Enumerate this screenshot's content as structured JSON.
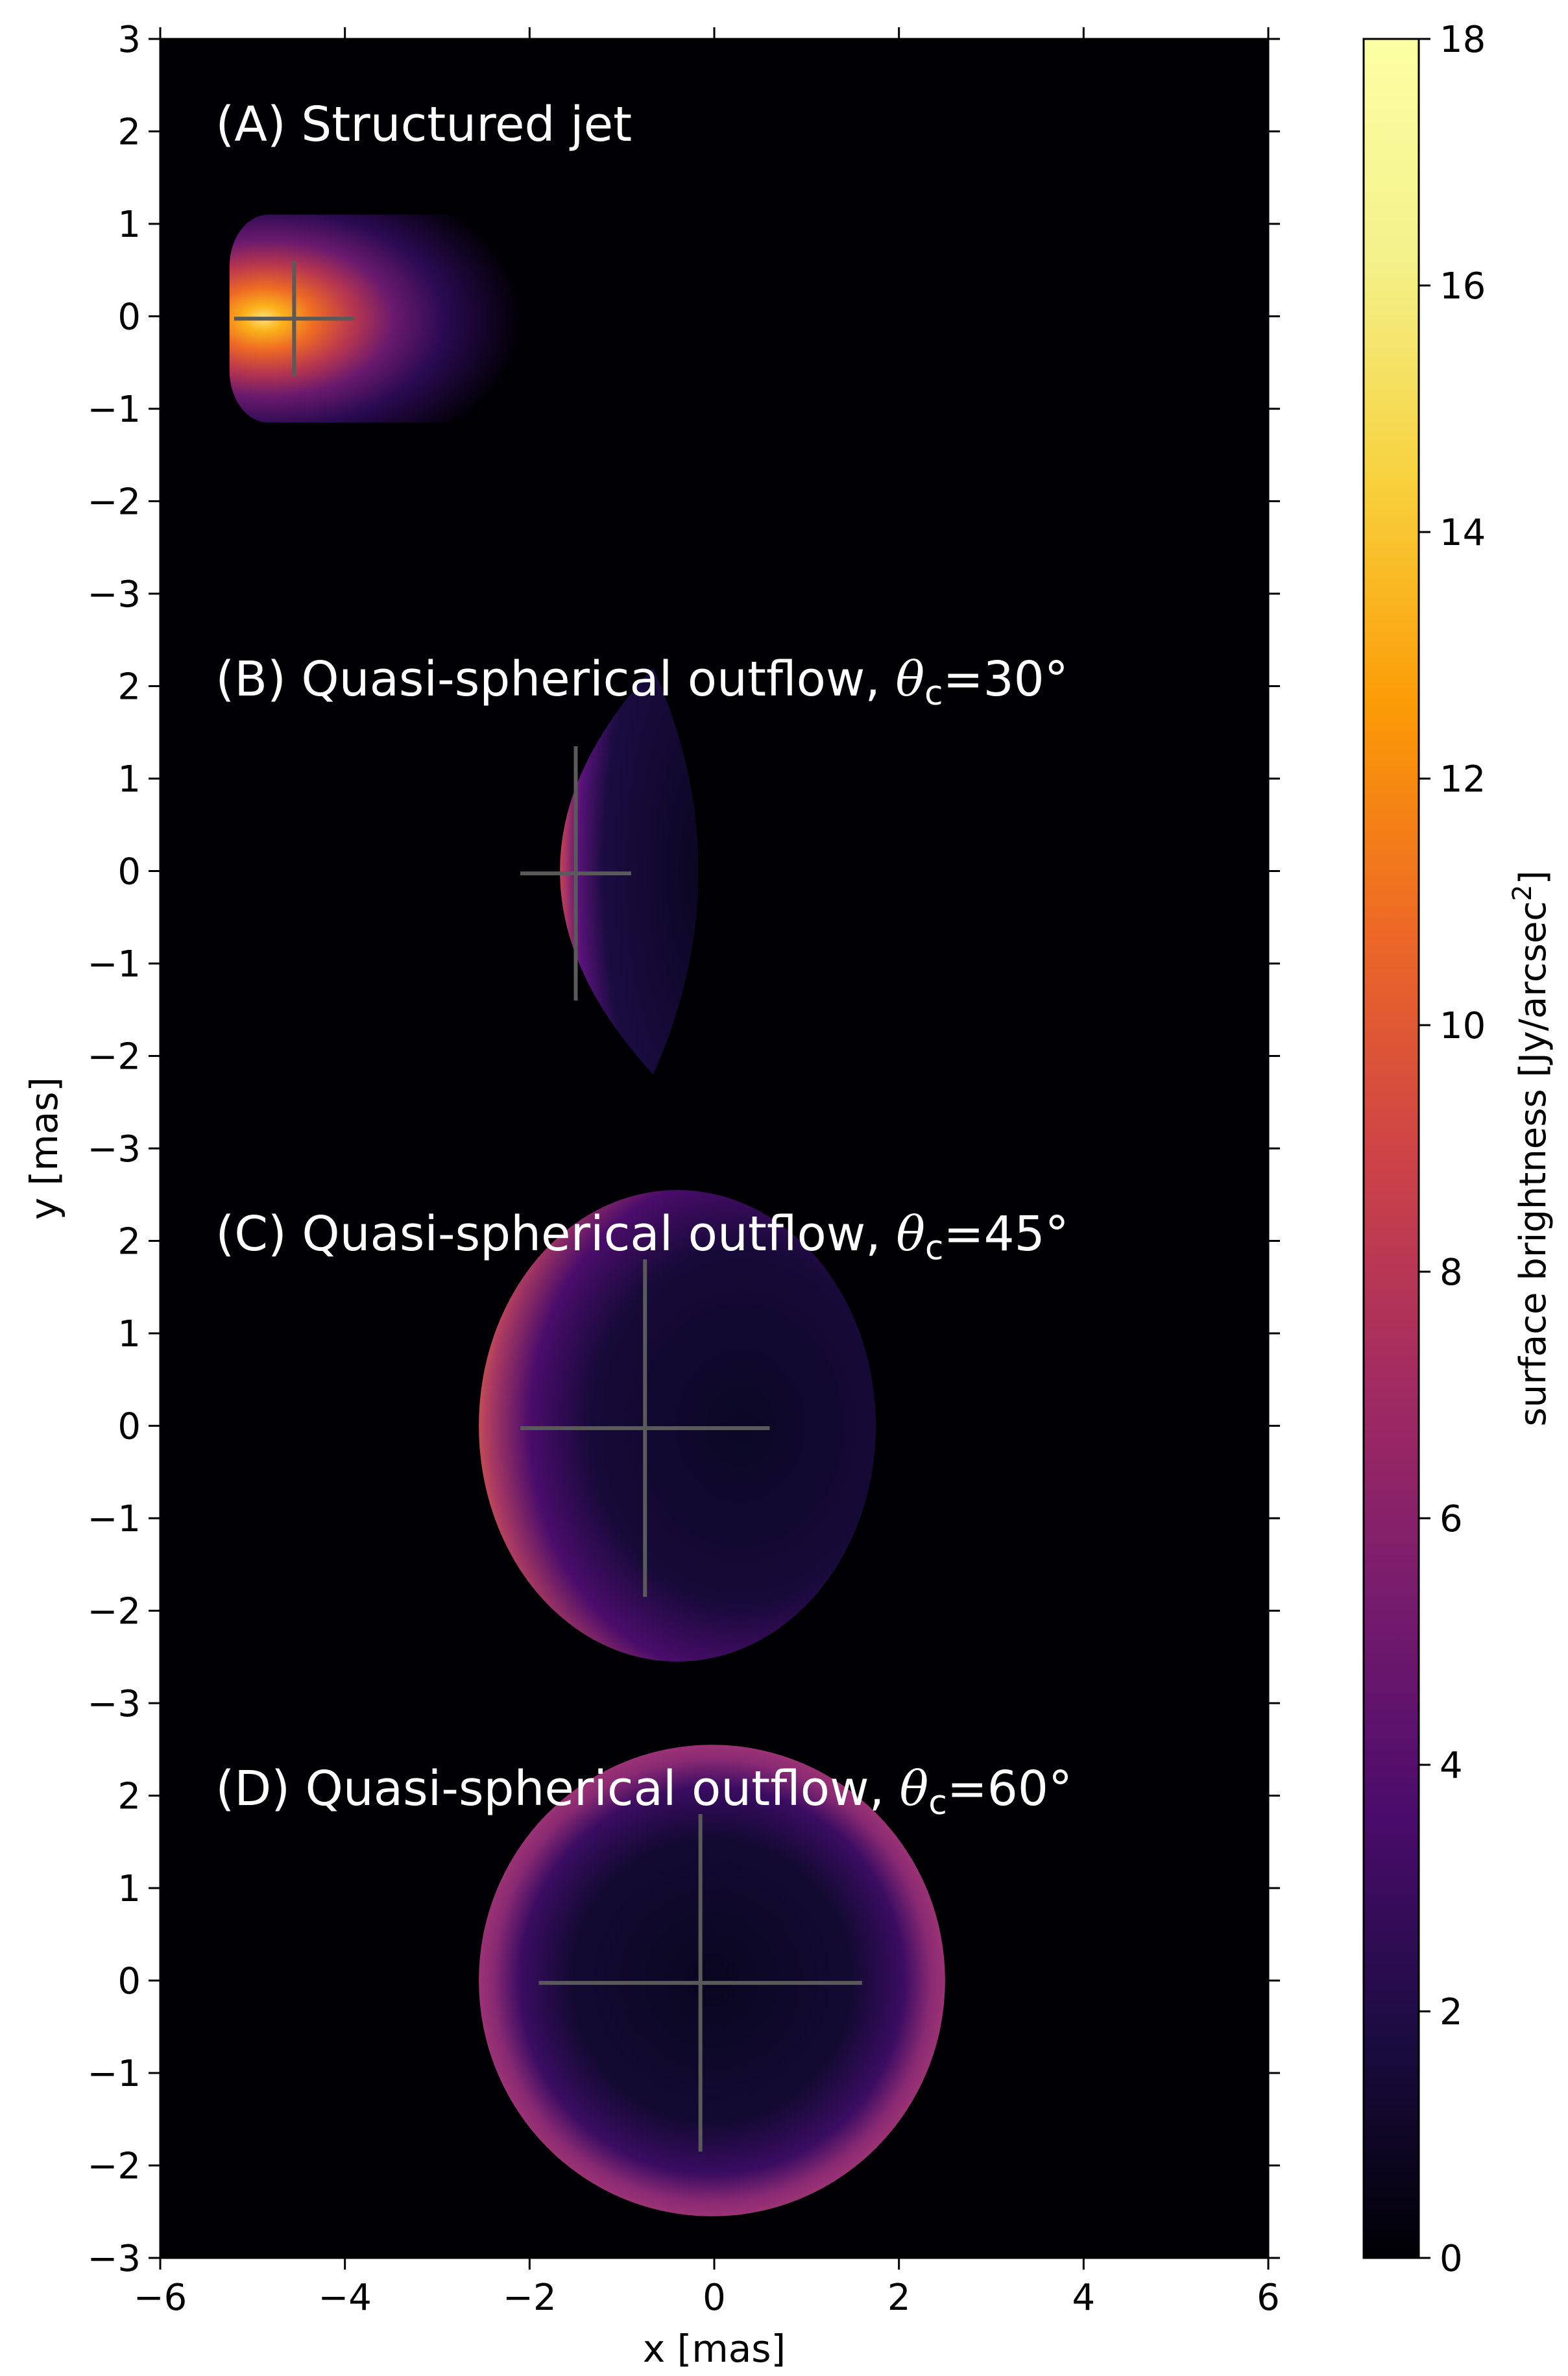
{
  "chart_data": {
    "type": "heatmap",
    "xlabel": "x [mas]",
    "ylabel": "y [mas]",
    "xlim": [
      -6,
      6
    ],
    "x_ticks": [
      -6,
      -4,
      -2,
      0,
      2,
      4,
      6
    ],
    "x_tick_labels": [
      "−6",
      "−4",
      "−2",
      "0",
      "2",
      "4",
      "6"
    ],
    "panel_y_ticks": [
      -3,
      -2,
      -1,
      0,
      1,
      2,
      3
    ],
    "panel_y_tick_labels": [
      "−3",
      "−2",
      "−1",
      "0",
      "1",
      "2",
      "3"
    ],
    "grid": false,
    "background_color": "#000004",
    "cross_color": "#5a5a5a",
    "colorbar": {
      "label": "surface brightness [Jy/arcsec",
      "label_sup": "2",
      "label_end": "]",
      "range": [
        0,
        18
      ],
      "ticks": [
        0,
        2,
        4,
        6,
        8,
        10,
        12,
        14,
        16,
        18
      ],
      "tick_labels": [
        "0",
        "2",
        "4",
        "6",
        "8",
        "10",
        "12",
        "14",
        "16",
        "18"
      ],
      "colormap": "inferno"
    },
    "panels": [
      {
        "label": "(A) Structured jet",
        "label_theta": "",
        "label_value": "",
        "shape": "jet",
        "center": [
          -4.6,
          0
        ],
        "cross": {
          "x": [
            -5.2,
            -3.9
          ],
          "y": [
            -0.65,
            0.6
          ]
        },
        "peak_brightness": 17
      },
      {
        "label": "(B) Quasi-spherical outflow, ",
        "label_theta": "θ",
        "label_sub": "c",
        "label_value": "=30°",
        "shape": "lens",
        "x_extent": [
          -2.4,
          -0.1
        ],
        "y_extent": [
          -2.2,
          2.2
        ],
        "cross": {
          "x": [
            -2.1,
            -0.9
          ],
          "y": [
            -1.4,
            1.35
          ]
        },
        "rim_brightness": 7
      },
      {
        "label": "(C) Quasi-spherical outflow, ",
        "label_theta": "θ",
        "label_sub": "c",
        "label_value": "=45°",
        "shape": "bubble",
        "x_extent": [
          -2.55,
          1.75
        ],
        "y_extent": [
          -2.55,
          2.55
        ],
        "cross": {
          "x": [
            -2.1,
            0.6
          ],
          "y": [
            -1.85,
            1.8
          ]
        },
        "rim_brightness": 8
      },
      {
        "label": "(D) Quasi-spherical outflow, ",
        "label_theta": "θ",
        "label_sub": "c",
        "label_value": "=60°",
        "shape": "disk",
        "x_extent": [
          -2.55,
          2.5
        ],
        "y_extent": [
          -2.55,
          2.55
        ],
        "cross": {
          "x": [
            -1.9,
            1.6
          ],
          "y": [
            -1.85,
            1.8
          ]
        },
        "rim_brightness": 5.5
      }
    ]
  }
}
